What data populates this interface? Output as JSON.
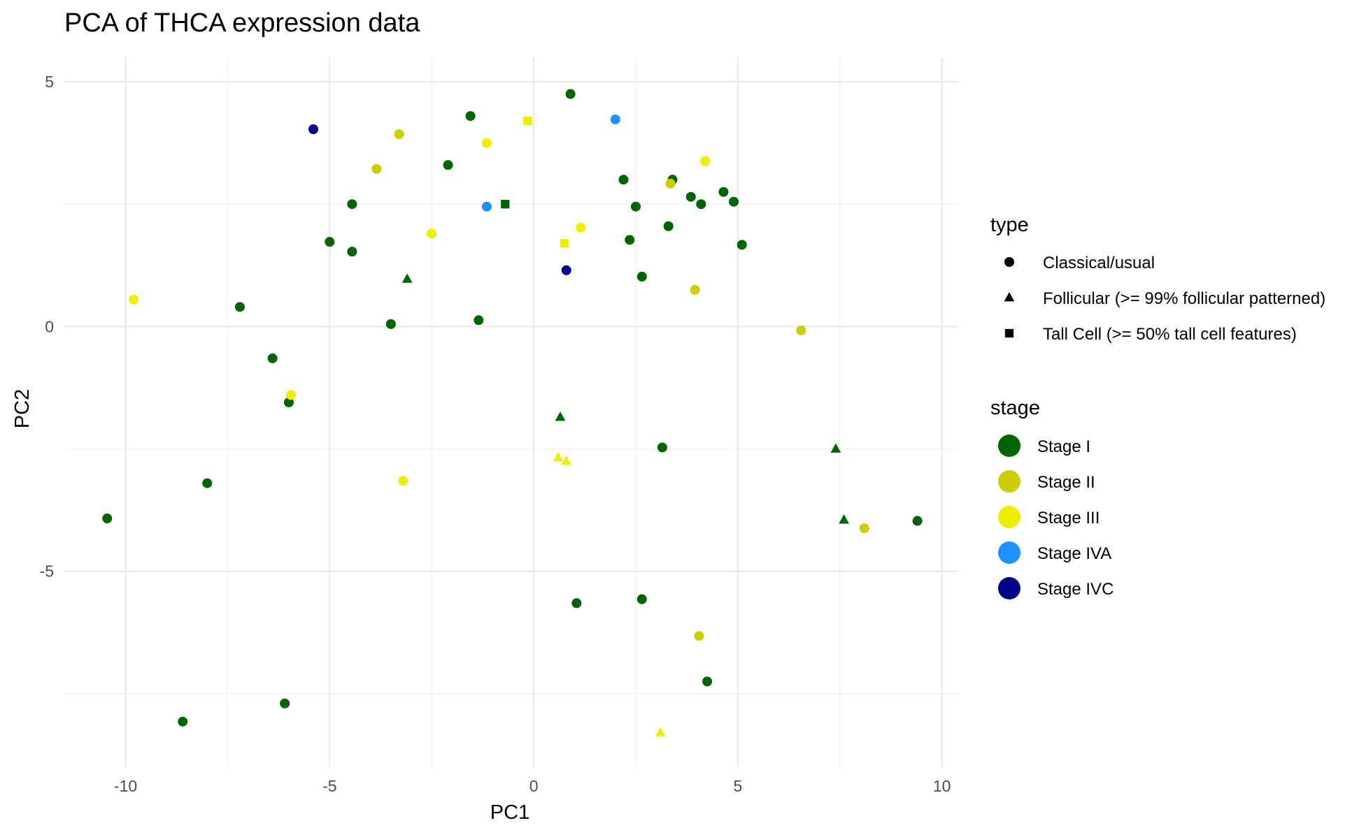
{
  "chart_data": {
    "type": "scatter",
    "title": "PCA of THCA expression data",
    "xlabel": "PC1",
    "ylabel": "PC2",
    "xlim": [
      -11.5,
      10.4
    ],
    "ylim": [
      -9.0,
      5.5
    ],
    "xticks": [
      -10,
      -5,
      0,
      5,
      10
    ],
    "yticks": [
      -5,
      0,
      5
    ],
    "grid": true,
    "legend_position": "right",
    "legends": [
      {
        "title": "type",
        "entries": [
          {
            "label": "Classical/usual",
            "shape": "circle"
          },
          {
            "label": "Follicular (>= 99% follicular patterned)",
            "shape": "triangle"
          },
          {
            "label": "Tall Cell (>= 50% tall cell features)",
            "shape": "square"
          }
        ]
      },
      {
        "title": "stage",
        "entries": [
          {
            "label": "Stage I",
            "color": "#006400"
          },
          {
            "label": "Stage II",
            "color": "#CDCD00"
          },
          {
            "label": "Stage III",
            "color": "#EEEE00"
          },
          {
            "label": "Stage IVA",
            "color": "#1E90FF"
          },
          {
            "label": "Stage IVC",
            "color": "#00008B"
          }
        ]
      }
    ],
    "points": [
      {
        "x": 0.9,
        "y": 4.75,
        "type": "Classical/usual",
        "stage": "Stage I"
      },
      {
        "x": -1.55,
        "y": 4.3,
        "type": "Classical/usual",
        "stage": "Stage I"
      },
      {
        "x": -2.1,
        "y": 3.3,
        "type": "Classical/usual",
        "stage": "Stage I"
      },
      {
        "x": 2.2,
        "y": 3.0,
        "type": "Classical/usual",
        "stage": "Stage I"
      },
      {
        "x": 3.4,
        "y": 3.0,
        "type": "Classical/usual",
        "stage": "Stage I"
      },
      {
        "x": 3.85,
        "y": 2.65,
        "type": "Classical/usual",
        "stage": "Stage I"
      },
      {
        "x": 4.1,
        "y": 2.5,
        "type": "Classical/usual",
        "stage": "Stage I"
      },
      {
        "x": 4.65,
        "y": 2.75,
        "type": "Classical/usual",
        "stage": "Stage I"
      },
      {
        "x": 4.9,
        "y": 2.55,
        "type": "Classical/usual",
        "stage": "Stage I"
      },
      {
        "x": 2.5,
        "y": 2.45,
        "type": "Classical/usual",
        "stage": "Stage I"
      },
      {
        "x": -4.45,
        "y": 2.5,
        "type": "Classical/usual",
        "stage": "Stage I"
      },
      {
        "x": 3.3,
        "y": 2.05,
        "type": "Classical/usual",
        "stage": "Stage I"
      },
      {
        "x": 2.35,
        "y": 1.77,
        "type": "Classical/usual",
        "stage": "Stage I"
      },
      {
        "x": 5.1,
        "y": 1.67,
        "type": "Classical/usual",
        "stage": "Stage I"
      },
      {
        "x": -5.0,
        "y": 1.73,
        "type": "Classical/usual",
        "stage": "Stage I"
      },
      {
        "x": -4.45,
        "y": 1.53,
        "type": "Classical/usual",
        "stage": "Stage I"
      },
      {
        "x": 2.65,
        "y": 1.02,
        "type": "Classical/usual",
        "stage": "Stage I"
      },
      {
        "x": -7.2,
        "y": 0.4,
        "type": "Classical/usual",
        "stage": "Stage I"
      },
      {
        "x": -3.5,
        "y": 0.05,
        "type": "Classical/usual",
        "stage": "Stage I"
      },
      {
        "x": -1.35,
        "y": 0.13,
        "type": "Classical/usual",
        "stage": "Stage I"
      },
      {
        "x": -6.4,
        "y": -0.65,
        "type": "Classical/usual",
        "stage": "Stage I"
      },
      {
        "x": -6.0,
        "y": -1.55,
        "type": "Classical/usual",
        "stage": "Stage I"
      },
      {
        "x": 3.15,
        "y": -2.47,
        "type": "Classical/usual",
        "stage": "Stage I"
      },
      {
        "x": -8.0,
        "y": -3.2,
        "type": "Classical/usual",
        "stage": "Stage I"
      },
      {
        "x": -10.45,
        "y": -3.92,
        "type": "Classical/usual",
        "stage": "Stage I"
      },
      {
        "x": 9.4,
        "y": -3.97,
        "type": "Classical/usual",
        "stage": "Stage I"
      },
      {
        "x": 2.65,
        "y": -5.57,
        "type": "Classical/usual",
        "stage": "Stage I"
      },
      {
        "x": 1.05,
        "y": -5.65,
        "type": "Classical/usual",
        "stage": "Stage I"
      },
      {
        "x": 4.25,
        "y": -7.25,
        "type": "Classical/usual",
        "stage": "Stage I"
      },
      {
        "x": -6.1,
        "y": -7.7,
        "type": "Classical/usual",
        "stage": "Stage I"
      },
      {
        "x": -8.6,
        "y": -8.07,
        "type": "Classical/usual",
        "stage": "Stage I"
      },
      {
        "x": -3.3,
        "y": 3.93,
        "type": "Classical/usual",
        "stage": "Stage II"
      },
      {
        "x": -3.85,
        "y": 3.22,
        "type": "Classical/usual",
        "stage": "Stage II"
      },
      {
        "x": 3.35,
        "y": 2.92,
        "type": "Classical/usual",
        "stage": "Stage II"
      },
      {
        "x": 3.95,
        "y": 0.75,
        "type": "Classical/usual",
        "stage": "Stage II"
      },
      {
        "x": 6.55,
        "y": -0.08,
        "type": "Classical/usual",
        "stage": "Stage II"
      },
      {
        "x": 8.1,
        "y": -4.12,
        "type": "Classical/usual",
        "stage": "Stage II"
      },
      {
        "x": 4.05,
        "y": -6.32,
        "type": "Classical/usual",
        "stage": "Stage II"
      },
      {
        "x": -1.15,
        "y": 3.75,
        "type": "Classical/usual",
        "stage": "Stage III"
      },
      {
        "x": 4.2,
        "y": 3.38,
        "type": "Classical/usual",
        "stage": "Stage III"
      },
      {
        "x": 1.15,
        "y": 2.02,
        "type": "Classical/usual",
        "stage": "Stage III"
      },
      {
        "x": -2.5,
        "y": 1.9,
        "type": "Classical/usual",
        "stage": "Stage III"
      },
      {
        "x": -9.8,
        "y": 0.55,
        "type": "Classical/usual",
        "stage": "Stage III"
      },
      {
        "x": -5.95,
        "y": -1.4,
        "type": "Classical/usual",
        "stage": "Stage III"
      },
      {
        "x": -3.2,
        "y": -3.15,
        "type": "Classical/usual",
        "stage": "Stage III"
      },
      {
        "x": 2.0,
        "y": 4.23,
        "type": "Classical/usual",
        "stage": "Stage IVA"
      },
      {
        "x": -1.15,
        "y": 2.45,
        "type": "Classical/usual",
        "stage": "Stage IVA"
      },
      {
        "x": -5.4,
        "y": 4.03,
        "type": "Classical/usual",
        "stage": "Stage IVC"
      },
      {
        "x": 0.8,
        "y": 1.15,
        "type": "Classical/usual",
        "stage": "Stage IVC"
      },
      {
        "x": -3.1,
        "y": 0.97,
        "type": "Follicular (>= 99% follicular patterned)",
        "stage": "Stage I"
      },
      {
        "x": 0.65,
        "y": -1.85,
        "type": "Follicular (>= 99% follicular patterned)",
        "stage": "Stage I"
      },
      {
        "x": 7.4,
        "y": -2.5,
        "type": "Follicular (>= 99% follicular patterned)",
        "stage": "Stage I"
      },
      {
        "x": 7.6,
        "y": -3.95,
        "type": "Follicular (>= 99% follicular patterned)",
        "stage": "Stage I"
      },
      {
        "x": 0.6,
        "y": -2.68,
        "type": "Follicular (>= 99% follicular patterned)",
        "stage": "Stage III"
      },
      {
        "x": 0.8,
        "y": -2.75,
        "type": "Follicular (>= 99% follicular patterned)",
        "stage": "Stage III"
      },
      {
        "x": 3.1,
        "y": -8.3,
        "type": "Follicular (>= 99% follicular patterned)",
        "stage": "Stage III"
      },
      {
        "x": -0.7,
        "y": 2.5,
        "type": "Tall Cell (>= 50% tall cell features)",
        "stage": "Stage I"
      },
      {
        "x": -0.15,
        "y": 4.2,
        "type": "Tall Cell (>= 50% tall cell features)",
        "stage": "Stage III"
      },
      {
        "x": 0.75,
        "y": 1.7,
        "type": "Tall Cell (>= 50% tall cell features)",
        "stage": "Stage III"
      }
    ]
  }
}
